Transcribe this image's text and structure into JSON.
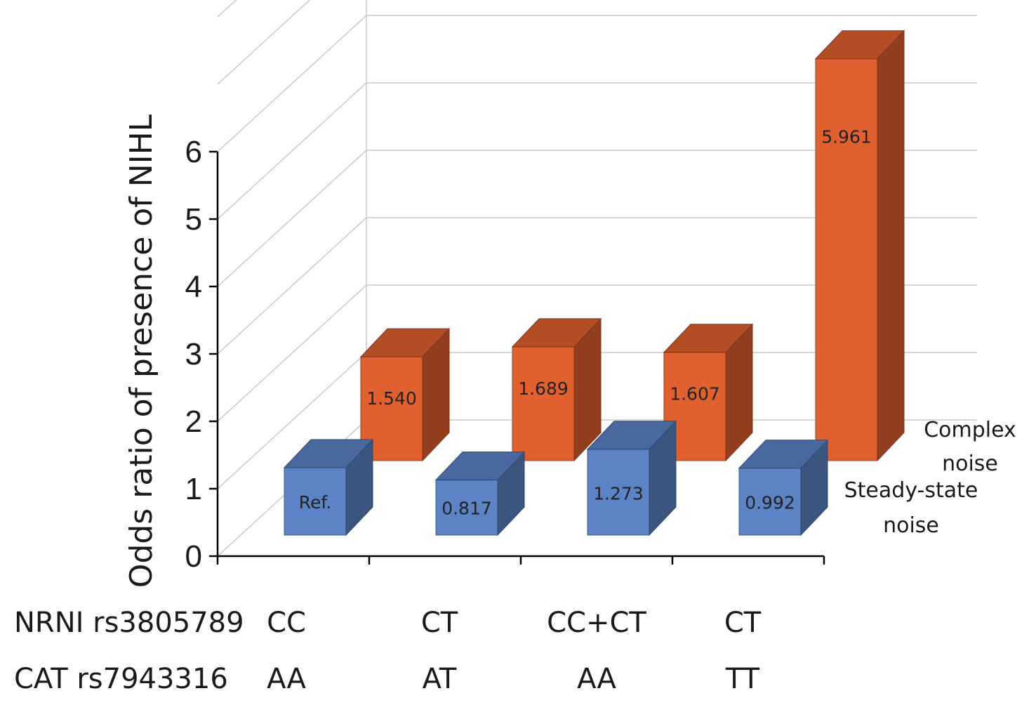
{
  "chart_data": {
    "type": "bar",
    "ylabel": "Odds ratio of presence of NIHL",
    "ylim": [
      0,
      6
    ],
    "yticks": [
      "0",
      "1",
      "2",
      "3",
      "4",
      "5",
      "6"
    ],
    "grid": true,
    "category_rows": [
      {
        "label": "NRNI rs3805789",
        "values": [
          "CC",
          "CT",
          "CC+CT",
          "CT"
        ]
      },
      {
        "label": "CAT rs7943316",
        "values": [
          "AA",
          "AT",
          "AA",
          "TT"
        ]
      }
    ],
    "series": [
      {
        "name": "Steady-state noise",
        "name_lines": [
          "Steady-state",
          "noise"
        ],
        "color": "#5b83c6",
        "values": [
          1.0,
          0.817,
          1.273,
          0.992
        ],
        "labels": [
          "Ref.",
          "0.817",
          "1.273",
          "0.992"
        ]
      },
      {
        "name": "Complex noise",
        "name_lines": [
          "Complex",
          "noise"
        ],
        "color": "#e06030",
        "values": [
          1.54,
          1.689,
          1.607,
          5.961
        ],
        "labels": [
          "1.540",
          "1.689",
          "1.607",
          "5.961"
        ]
      }
    ]
  }
}
